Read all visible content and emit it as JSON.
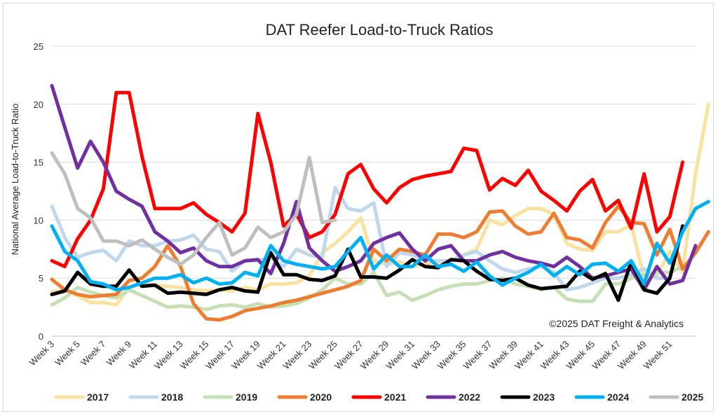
{
  "chart_data": {
    "type": "line",
    "title": "DAT Reefer Load-to-Truck Ratios",
    "ylabel": "National Average Load-to-Truck Ratio",
    "xlabel": "",
    "ylim": [
      0,
      25
    ],
    "yticks": [
      0,
      5,
      10,
      15,
      20,
      25
    ],
    "grid": true,
    "legend_position": "bottom",
    "annotation": "©2025 DAT Freight & Analytics",
    "x_tick_labels": [
      "Week 3",
      "Week 5",
      "Week 7",
      "Week 9",
      "Week 11",
      "Week 13",
      "Week 15",
      "Week 17",
      "Week 19",
      "Week 21",
      "Week 23",
      "Week 25",
      "Week 27",
      "Week 29",
      "Week 31",
      "Week 33",
      "Week 35",
      "Week 37",
      "Week 39",
      "Week 41",
      "Week 43",
      "Week 45",
      "Week 47",
      "Week 49",
      "Week 51"
    ],
    "x_tick_weeks": [
      3,
      5,
      7,
      9,
      11,
      13,
      15,
      17,
      19,
      21,
      23,
      25,
      27,
      29,
      31,
      33,
      35,
      37,
      39,
      41,
      43,
      45,
      47,
      49,
      51
    ],
    "xlim": [
      3,
      53
    ],
    "series": [
      {
        "name": "2017",
        "color": "#f9e2a0",
        "start_week": 3,
        "values": [
          3.8,
          4.0,
          3.5,
          2.9,
          2.9,
          2.7,
          4.2,
          4.5,
          4.4,
          4.3,
          4.2,
          4.0,
          3.9,
          4.0,
          3.9,
          4.2,
          4.0,
          4.5,
          4.5,
          4.6,
          5.2,
          7.2,
          8.0,
          9.0,
          10.2,
          6.5,
          6.2,
          6.4,
          6.0,
          6.2,
          6.3,
          6.5,
          7.0,
          7.5,
          10.0,
          9.6,
          10.4,
          11.0,
          11.0,
          10.5,
          8.0,
          7.5,
          7.4,
          9.0,
          9.0,
          9.6,
          5.0,
          5.2,
          7.3,
          5.5,
          14.0,
          20.0
        ]
      },
      {
        "name": "2018",
        "color": "#c0d8ee",
        "start_week": 3,
        "values": [
          11.2,
          8.5,
          6.8,
          7.2,
          7.4,
          6.5,
          8.2,
          7.8,
          7.8,
          8.2,
          8.3,
          8.7,
          7.5,
          7.3,
          5.6,
          6.5,
          6.5,
          6.8,
          6.0,
          7.5,
          7.0,
          6.8,
          12.8,
          11.0,
          10.8,
          11.5,
          6.0,
          7.2,
          7.0,
          6.5,
          6.5,
          6.5,
          7.0,
          7.3,
          6.5,
          5.8,
          5.5,
          5.8,
          6.0,
          5.5,
          4.0,
          4.2,
          4.6,
          5.0,
          5.0,
          5.3,
          5.8,
          5.0,
          5.0
        ]
      },
      {
        "name": "2019",
        "color": "#c5e0b4",
        "start_week": 3,
        "values": [
          2.7,
          3.3,
          4.2,
          3.8,
          3.5,
          3.3,
          4.0,
          3.5,
          3.0,
          2.5,
          2.6,
          2.5,
          2.3,
          2.6,
          2.7,
          2.5,
          2.8,
          2.5,
          2.6,
          2.8,
          3.3,
          4.0,
          5.0,
          4.5,
          4.5,
          5.5,
          3.5,
          3.8,
          3.1,
          3.5,
          4.0,
          4.3,
          4.5,
          4.5,
          4.8,
          5.0,
          4.5,
          4.3,
          4.0,
          4.2,
          3.2,
          3.0,
          3.0,
          4.5,
          4.5,
          5.0,
          5.3,
          5.5,
          5.5,
          6.0
        ]
      },
      {
        "name": "2020",
        "color": "#ed7d31",
        "start_week": 3,
        "values": [
          4.9,
          4.0,
          3.6,
          3.4,
          3.5,
          3.6,
          4.8,
          5.0,
          6.0,
          7.8,
          6.0,
          2.8,
          1.5,
          1.4,
          1.7,
          2.2,
          2.4,
          2.6,
          2.9,
          3.1,
          3.4,
          3.7,
          4.0,
          4.3,
          4.8,
          7.5,
          6.5,
          7.5,
          7.3,
          7.0,
          8.8,
          8.8,
          8.5,
          9.0,
          10.7,
          10.8,
          9.5,
          8.8,
          9.0,
          10.6,
          8.5,
          8.3,
          7.6,
          9.8,
          11.2,
          9.8,
          9.7,
          7.0,
          9.2,
          5.8,
          7.2,
          9.0
        ]
      },
      {
        "name": "2021",
        "color": "#ff0000",
        "start_week": 3,
        "values": [
          6.5,
          6.0,
          8.4,
          10.0,
          12.7,
          21.0,
          21.0,
          15.5,
          11.0,
          11.0,
          11.0,
          11.5,
          10.5,
          9.8,
          9.0,
          10.6,
          19.2,
          15.0,
          9.5,
          10.5,
          8.5,
          9.0,
          10.5,
          14.0,
          14.8,
          12.7,
          11.5,
          12.8,
          13.5,
          13.8,
          14.0,
          14.2,
          16.2,
          16.0,
          12.6,
          13.6,
          13.0,
          14.3,
          12.5,
          11.7,
          10.8,
          12.5,
          13.5,
          10.8,
          11.7,
          9.3,
          14.0,
          9.0,
          10.3,
          15.0
        ]
      },
      {
        "name": "2022",
        "color": "#7030a0",
        "start_week": 3,
        "values": [
          21.6,
          18.0,
          14.5,
          16.8,
          15.0,
          12.5,
          11.8,
          11.2,
          9.0,
          8.2,
          7.2,
          7.6,
          6.5,
          6.0,
          6.0,
          6.5,
          6.6,
          5.4,
          8.0,
          11.6,
          7.6,
          6.5,
          5.6,
          6.0,
          6.5,
          8.0,
          8.5,
          8.9,
          7.5,
          6.5,
          7.5,
          7.8,
          6.5,
          6.5,
          7.0,
          7.3,
          6.8,
          6.5,
          6.3,
          6.0,
          6.8,
          6.0,
          5.0,
          5.2,
          5.5,
          5.8,
          4.0,
          6.0,
          4.5,
          4.8,
          7.8
        ]
      },
      {
        "name": "2023",
        "color": "#000000",
        "start_week": 3,
        "values": [
          3.6,
          3.9,
          5.5,
          4.5,
          4.3,
          4.3,
          5.7,
          4.3,
          4.4,
          3.7,
          3.8,
          3.7,
          3.6,
          4.0,
          4.2,
          3.9,
          3.8,
          7.2,
          5.3,
          5.3,
          4.9,
          4.8,
          5.2,
          7.5,
          5.1,
          5.1,
          5.0,
          5.7,
          6.6,
          6.0,
          5.9,
          6.6,
          6.5,
          5.6,
          4.9,
          4.8,
          5.0,
          4.4,
          4.1,
          4.2,
          4.3,
          5.6,
          4.9,
          5.4,
          3.1,
          6.4,
          4.0,
          3.7,
          5.0,
          9.5
        ]
      },
      {
        "name": "2024",
        "color": "#00b0f0",
        "start_week": 3,
        "values": [
          9.5,
          7.3,
          6.5,
          4.7,
          4.5,
          4.0,
          4.2,
          4.6,
          5.0,
          5.0,
          5.3,
          4.6,
          5.0,
          4.5,
          4.6,
          5.5,
          5.2,
          7.8,
          6.5,
          6.2,
          6.0,
          5.8,
          6.0,
          7.3,
          8.5,
          5.8,
          7.0,
          6.0,
          6.0,
          7.0,
          6.0,
          6.2,
          5.6,
          6.4,
          5.2,
          4.4,
          5.0,
          5.5,
          6.2,
          5.2,
          6.0,
          5.3,
          6.2,
          6.3,
          5.6,
          6.5,
          4.5,
          8.0,
          6.3,
          9.0,
          11.0,
          11.6
        ]
      },
      {
        "name": "2025",
        "color": "#bfbfbf",
        "start_week": 3,
        "values": [
          15.8,
          14.0,
          11.0,
          10.2,
          8.2,
          8.2,
          7.8,
          8.3,
          7.5,
          6.8,
          6.2,
          7.0,
          8.5,
          9.8,
          7.0,
          7.6,
          9.4,
          8.5,
          9.0,
          10.5,
          15.4,
          9.8,
          10.0
        ]
      }
    ]
  }
}
